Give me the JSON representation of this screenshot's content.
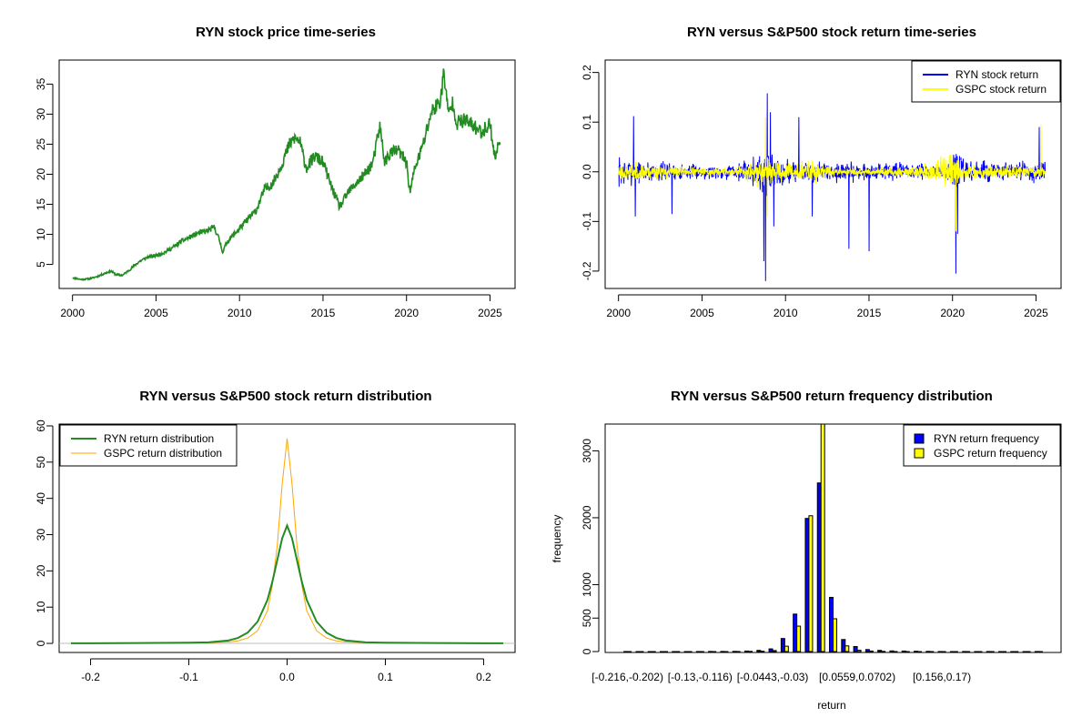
{
  "colors": {
    "ryn_price": "#228B22",
    "ryn_return": "#0000FF",
    "gspc_return": "#FFFF00",
    "ryn_density": "#228B22",
    "gspc_density": "#FFA500",
    "ryn_bar": "#0000FF",
    "gspc_bar": "#FFFF00",
    "zero_line": "#BEBEBE"
  },
  "chart_data": [
    {
      "type": "line",
      "title": "RYN stock price time-series",
      "xlabel": "",
      "ylabel": "",
      "xlim": [
        1999.2,
        2026.5
      ],
      "ylim": [
        1.0,
        39.0
      ],
      "xticks": [
        2000,
        2005,
        2010,
        2015,
        2020,
        2025
      ],
      "yticks": [
        5,
        10,
        15,
        20,
        25,
        30,
        35
      ],
      "grid": false,
      "series": [
        {
          "x": [
            2000.0,
            2000.5,
            2001.0,
            2001.5,
            2002.0,
            2002.3,
            2002.6,
            2003.0,
            2003.5,
            2004.0,
            2004.5,
            2005.0,
            2005.5,
            2006.0,
            2006.5,
            2007.0,
            2007.5,
            2008.0,
            2008.5,
            2008.8,
            2009.0,
            2009.2,
            2009.5,
            2010.0,
            2010.5,
            2011.0,
            2011.5,
            2012.0,
            2012.5,
            2013.0,
            2013.3,
            2013.6,
            2014.0,
            2014.5,
            2015.0,
            2015.5,
            2016.0,
            2016.5,
            2017.0,
            2017.5,
            2018.0,
            2018.4,
            2018.7,
            2019.0,
            2019.5,
            2020.0,
            2020.2,
            2020.5,
            2021.0,
            2021.5,
            2022.0,
            2022.25,
            2022.5,
            2022.8,
            2023.0,
            2023.5,
            2024.0,
            2024.5,
            2025.0,
            2025.3,
            2025.6
          ],
          "y": [
            2.8,
            2.5,
            2.6,
            3.0,
            3.6,
            3.9,
            3.3,
            3.2,
            4.3,
            5.5,
            6.2,
            6.5,
            7.0,
            7.8,
            8.8,
            9.5,
            10.2,
            10.5,
            11.2,
            9.0,
            7.0,
            8.5,
            9.5,
            11.0,
            12.5,
            14.0,
            17.5,
            18.5,
            21.5,
            25.0,
            26.0,
            25.5,
            21.0,
            23.0,
            22.0,
            18.0,
            14.5,
            17.0,
            18.5,
            20.0,
            22.0,
            28.0,
            22.0,
            23.5,
            24.0,
            22.0,
            17.0,
            21.0,
            25.0,
            30.5,
            32.0,
            37.0,
            30.0,
            32.0,
            28.5,
            29.0,
            28.0,
            27.0,
            28.5,
            22.5,
            26.0
          ]
        }
      ]
    },
    {
      "type": "line",
      "title": "RYN versus S&P500 stock return time-series",
      "xlabel": "",
      "ylabel": "",
      "xlim": [
        1999.2,
        2026.5
      ],
      "ylim": [
        -0.235,
        0.225
      ],
      "xticks": [
        2000,
        2005,
        2010,
        2015,
        2020,
        2025
      ],
      "yticks": [
        -0.2,
        -0.1,
        0.0,
        0.1,
        0.2
      ],
      "ytick_labels": [
        "-0.2",
        "-0.1",
        "0.0",
        "0.1",
        "0.2"
      ],
      "legend": "top-right",
      "series": [
        {
          "name": "RYN stock return",
          "volatility": [
            [
              2000.0,
              0.045
            ],
            [
              2001.0,
              0.03
            ],
            [
              2002.5,
              0.028
            ],
            [
              2004.0,
              0.02
            ],
            [
              2007.0,
              0.02
            ],
            [
              2008.0,
              0.035
            ],
            [
              2008.8,
              0.085
            ],
            [
              2009.5,
              0.05
            ],
            [
              2010.5,
              0.03
            ],
            [
              2013.0,
              0.025
            ],
            [
              2016.0,
              0.025
            ],
            [
              2019.5,
              0.02
            ],
            [
              2020.2,
              0.07
            ],
            [
              2020.8,
              0.03
            ],
            [
              2023.0,
              0.025
            ],
            [
              2025.5,
              0.03
            ]
          ],
          "spikes": [
            [
              2000.9,
              0.112
            ],
            [
              2008.9,
              0.158
            ],
            [
              2009.1,
              0.12
            ],
            [
              2010.8,
              0.11
            ],
            [
              2020.2,
              0.14
            ],
            [
              2025.2,
              0.09
            ],
            [
              2008.8,
              -0.22
            ],
            [
              2008.7,
              -0.18
            ],
            [
              2013.8,
              -0.155
            ],
            [
              2015.0,
              -0.16
            ],
            [
              2020.2,
              -0.205
            ],
            [
              2020.3,
              -0.125
            ],
            [
              2001.0,
              -0.09
            ],
            [
              2003.2,
              -0.085
            ],
            [
              2009.3,
              -0.11
            ],
            [
              2011.6,
              -0.09
            ]
          ]
        },
        {
          "name": "GSPC stock return",
          "volatility": [
            [
              2000.0,
              0.025
            ],
            [
              2002.5,
              0.022
            ],
            [
              2004.0,
              0.012
            ],
            [
              2007.0,
              0.012
            ],
            [
              2008.5,
              0.04
            ],
            [
              2009.5,
              0.025
            ],
            [
              2011.6,
              0.03
            ],
            [
              2013.0,
              0.01
            ],
            [
              2018.0,
              0.013
            ],
            [
              2020.2,
              0.06
            ],
            [
              2020.6,
              0.02
            ],
            [
              2022.0,
              0.02
            ],
            [
              2025.5,
              0.015
            ]
          ],
          "spikes": [
            [
              2008.8,
              0.11
            ],
            [
              2025.3,
              0.095
            ],
            [
              2008.9,
              -0.09
            ],
            [
              2020.2,
              -0.12
            ]
          ]
        }
      ]
    },
    {
      "type": "line",
      "title": "RYN versus S&P500 stock return distribution",
      "xlabel": "",
      "ylabel": "",
      "xlim": [
        -0.232,
        0.232
      ],
      "ylim": [
        -2.5,
        60.5
      ],
      "xticks": [
        -0.2,
        -0.1,
        0.0,
        0.1,
        0.2
      ],
      "xtick_labels": [
        "-0.2",
        "-0.1",
        "0.0",
        "0.1",
        "0.2"
      ],
      "yticks": [
        0,
        10,
        20,
        30,
        40,
        50,
        60
      ],
      "legend": "top-left",
      "series": [
        {
          "name": "RYN return distribution",
          "x": [
            -0.22,
            -0.2,
            -0.15,
            -0.1,
            -0.08,
            -0.06,
            -0.05,
            -0.04,
            -0.03,
            -0.02,
            -0.015,
            -0.01,
            -0.005,
            0.0,
            0.005,
            0.01,
            0.015,
            0.02,
            0.03,
            0.04,
            0.05,
            0.06,
            0.08,
            0.1,
            0.15,
            0.2,
            0.22
          ],
          "y": [
            0.05,
            0.05,
            0.1,
            0.2,
            0.3,
            0.8,
            1.5,
            3.0,
            6.0,
            12.0,
            17.0,
            23.0,
            29.0,
            32.5,
            29.0,
            23.0,
            17.0,
            12.0,
            6.0,
            3.0,
            1.5,
            0.8,
            0.3,
            0.2,
            0.1,
            0.05,
            0.05
          ]
        },
        {
          "name": "GSPC return distribution",
          "x": [
            -0.22,
            -0.15,
            -0.1,
            -0.08,
            -0.06,
            -0.05,
            -0.04,
            -0.03,
            -0.02,
            -0.015,
            -0.01,
            -0.005,
            0.0,
            0.005,
            0.01,
            0.015,
            0.02,
            0.03,
            0.04,
            0.05,
            0.06,
            0.08,
            0.1,
            0.15,
            0.22
          ],
          "y": [
            0.0,
            0.0,
            0.1,
            0.2,
            0.4,
            0.7,
            1.5,
            3.5,
            9.0,
            16.0,
            27.0,
            44.0,
            56.5,
            44.0,
            27.0,
            16.0,
            9.0,
            3.5,
            1.5,
            0.7,
            0.4,
            0.2,
            0.1,
            0.0,
            0.0
          ]
        }
      ]
    },
    {
      "type": "bar",
      "title": "RYN versus S&P500 return frequency distribution",
      "xlabel": "return",
      "ylabel": "frequency",
      "ylim": [
        0,
        3400
      ],
      "yticks": [
        0,
        500,
        1000,
        2000,
        3000
      ],
      "category_labels": [
        "[-0.216,-0.202)",
        "[-0.13,-0.116)",
        "[-0.0443,-0.03)",
        "[0.0559,0.0702)",
        "[0.156,0.17)"
      ],
      "category_label_positions": [
        0,
        6,
        12,
        19,
        26
      ],
      "legend": "top-right",
      "series": [
        {
          "name": "RYN return frequency",
          "values": [
            1,
            0,
            0,
            0,
            0,
            0,
            1,
            2,
            2,
            3,
            8,
            18,
            40,
            195,
            560,
            1990,
            2520,
            810,
            180,
            75,
            30,
            18,
            10,
            8,
            5,
            3,
            1,
            0,
            1,
            0,
            1,
            0,
            0,
            0,
            1
          ]
        },
        {
          "name": "GSPC return frequency",
          "values": [
            0,
            0,
            0,
            0,
            0,
            0,
            0,
            0,
            0,
            1,
            3,
            5,
            15,
            80,
            380,
            2030,
            3400,
            490,
            85,
            20,
            8,
            3,
            1,
            0,
            0,
            0,
            0,
            0,
            0,
            0,
            0,
            0,
            0,
            0,
            0
          ]
        }
      ]
    }
  ]
}
